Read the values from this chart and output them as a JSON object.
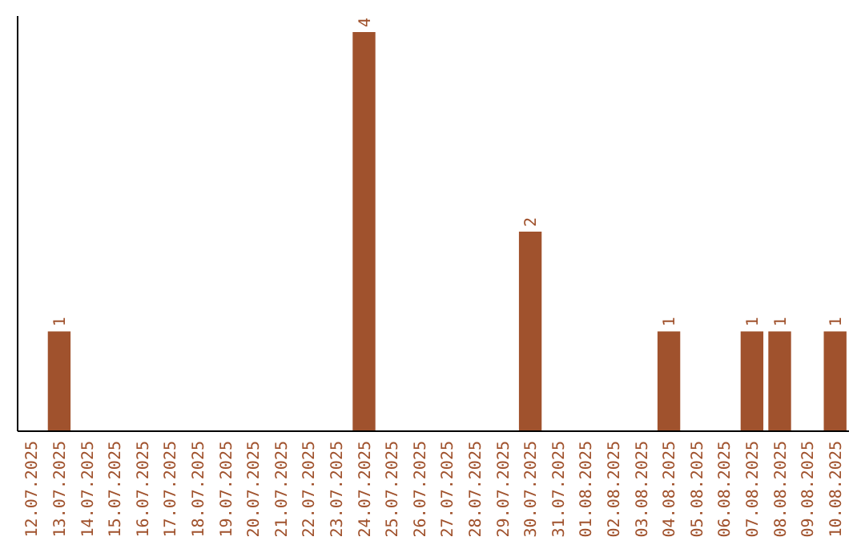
{
  "chart_data": {
    "type": "bar",
    "categories": [
      "12.07.2025",
      "13.07.2025",
      "14.07.2025",
      "15.07.2025",
      "16.07.2025",
      "17.07.2025",
      "18.07.2025",
      "19.07.2025",
      "20.07.2025",
      "21.07.2025",
      "22.07.2025",
      "23.07.2025",
      "24.07.2025",
      "25.07.2025",
      "26.07.2025",
      "27.07.2025",
      "28.07.2025",
      "29.07.2025",
      "30.07.2025",
      "31.07.2025",
      "01.08.2025",
      "02.08.2025",
      "03.08.2025",
      "04.08.2025",
      "05.08.2025",
      "06.08.2025",
      "07.08.2025",
      "08.08.2025",
      "09.08.2025",
      "10.08.2025"
    ],
    "values": [
      0,
      1,
      0,
      0,
      0,
      0,
      0,
      0,
      0,
      0,
      0,
      0,
      4,
      0,
      0,
      0,
      0,
      0,
      2,
      0,
      0,
      0,
      0,
      1,
      0,
      0,
      1,
      1,
      0,
      1
    ],
    "value_labels": [
      null,
      "1",
      null,
      null,
      null,
      null,
      null,
      null,
      null,
      null,
      null,
      null,
      "4",
      null,
      null,
      null,
      null,
      null,
      "2",
      null,
      null,
      null,
      null,
      "1",
      null,
      null,
      "1",
      "1",
      null,
      "1"
    ],
    "color": "#a0522d",
    "tick_labels": "x"
  }
}
